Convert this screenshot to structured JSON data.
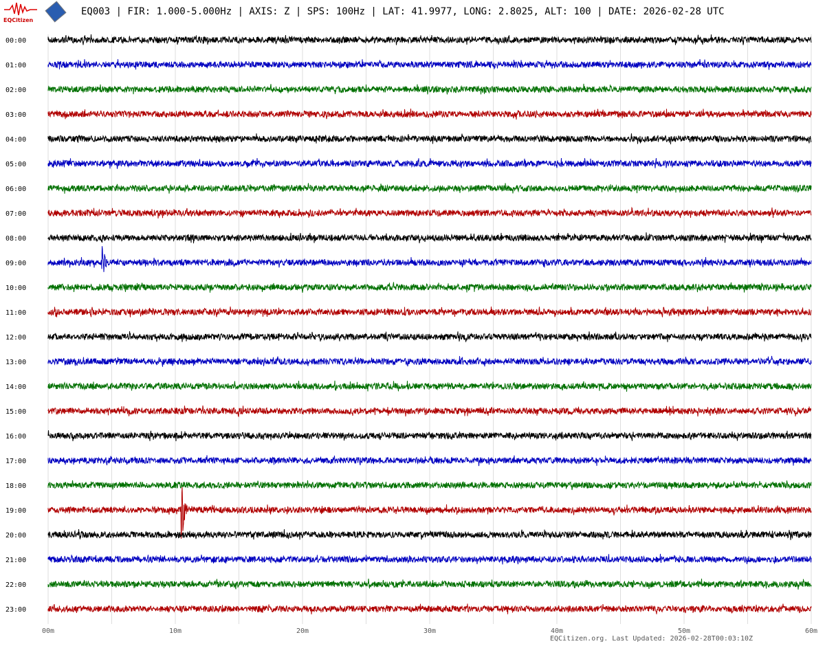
{
  "header": {
    "title": "EQ003 | FIR: 1.000-5.000Hz | AXIS: Z | SPS: 100Hz | LAT: 41.9977, LONG: 2.8025, ALT: 100 | DATE: 2026-02-28 UTC",
    "logo_text": "EQCitizen"
  },
  "footer": {
    "text": "EQCitizen.org. Last Updated: 2026-02-28T00:03:10Z"
  },
  "chart_data": {
    "type": "line",
    "title": "",
    "x_ticks": [
      "00m",
      "10m",
      "20m",
      "30m",
      "40m",
      "50m",
      "60m"
    ],
    "xlim": [
      0,
      60
    ],
    "grid_minutes": 5,
    "grid": true,
    "row_labels": [
      "00:00",
      "01:00",
      "02:00",
      "03:00",
      "04:00",
      "05:00",
      "06:00",
      "07:00",
      "08:00",
      "09:00",
      "10:00",
      "11:00",
      "12:00",
      "13:00",
      "14:00",
      "15:00",
      "16:00",
      "17:00",
      "18:00",
      "19:00",
      "20:00",
      "21:00",
      "22:00",
      "23:00"
    ],
    "row_colors": [
      "#000000",
      "#0000c0",
      "#007000",
      "#b00000"
    ],
    "events": [
      {
        "row": "09:00",
        "minute": 4.2,
        "relative_amplitude": 7
      },
      {
        "row": "19:00",
        "minute": 10.4,
        "relative_amplitude": 16
      }
    ]
  }
}
